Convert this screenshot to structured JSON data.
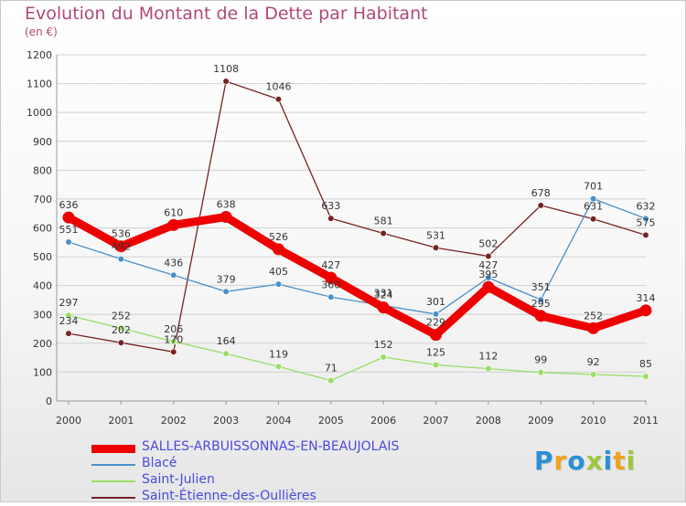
{
  "title": "Evolution du Montant de la Dette par Habitant",
  "unit_label": "(en €)",
  "logo": {
    "letters": [
      "P",
      "r",
      "o",
      "x",
      "i",
      "t",
      "i"
    ],
    "colors": [
      "#2a8fd6",
      "#f2a21c",
      "#2a8fd6",
      "#9ec93a",
      "#2a8fd6",
      "#f2a21c",
      "#9ec93a"
    ]
  },
  "chart_data": {
    "type": "line",
    "title": "Evolution du Montant de la Dette par Habitant",
    "ylabel": "(en €)",
    "xlabel": "",
    "x": [
      "2000",
      "2001",
      "2002",
      "2003",
      "2004",
      "2005",
      "2006",
      "2007",
      "2008",
      "2009",
      "2010",
      "2011"
    ],
    "ylim": [
      0,
      1200
    ],
    "yticks": [
      0,
      100,
      200,
      300,
      400,
      500,
      600,
      700,
      800,
      900,
      1000,
      1100,
      1200
    ],
    "grid": "horizontal",
    "legend_position": "bottom",
    "series": [
      {
        "name": "SALLES-ARBUISSONNAS-EN-BEAUJOLAIS",
        "color": "#ee0000",
        "emphasis": true,
        "values": [
          636,
          536,
          610,
          638,
          526,
          427,
          324,
          229,
          395,
          295,
          252,
          314
        ]
      },
      {
        "name": "Blacé",
        "color": "#4a90c8",
        "values": [
          551,
          492,
          436,
          379,
          405,
          360,
          331,
          301,
          427,
          351,
          701,
          632
        ]
      },
      {
        "name": "Saint-Julien",
        "color": "#99dd66",
        "values": [
          297,
          252,
          206,
          164,
          119,
          71,
          152,
          125,
          112,
          99,
          92,
          85
        ]
      },
      {
        "name": "Saint-Étienne-des-Oullières",
        "color": "#772222",
        "values": [
          234,
          202,
          170,
          1108,
          1046,
          633,
          581,
          531,
          502,
          678,
          631,
          575
        ]
      }
    ]
  }
}
